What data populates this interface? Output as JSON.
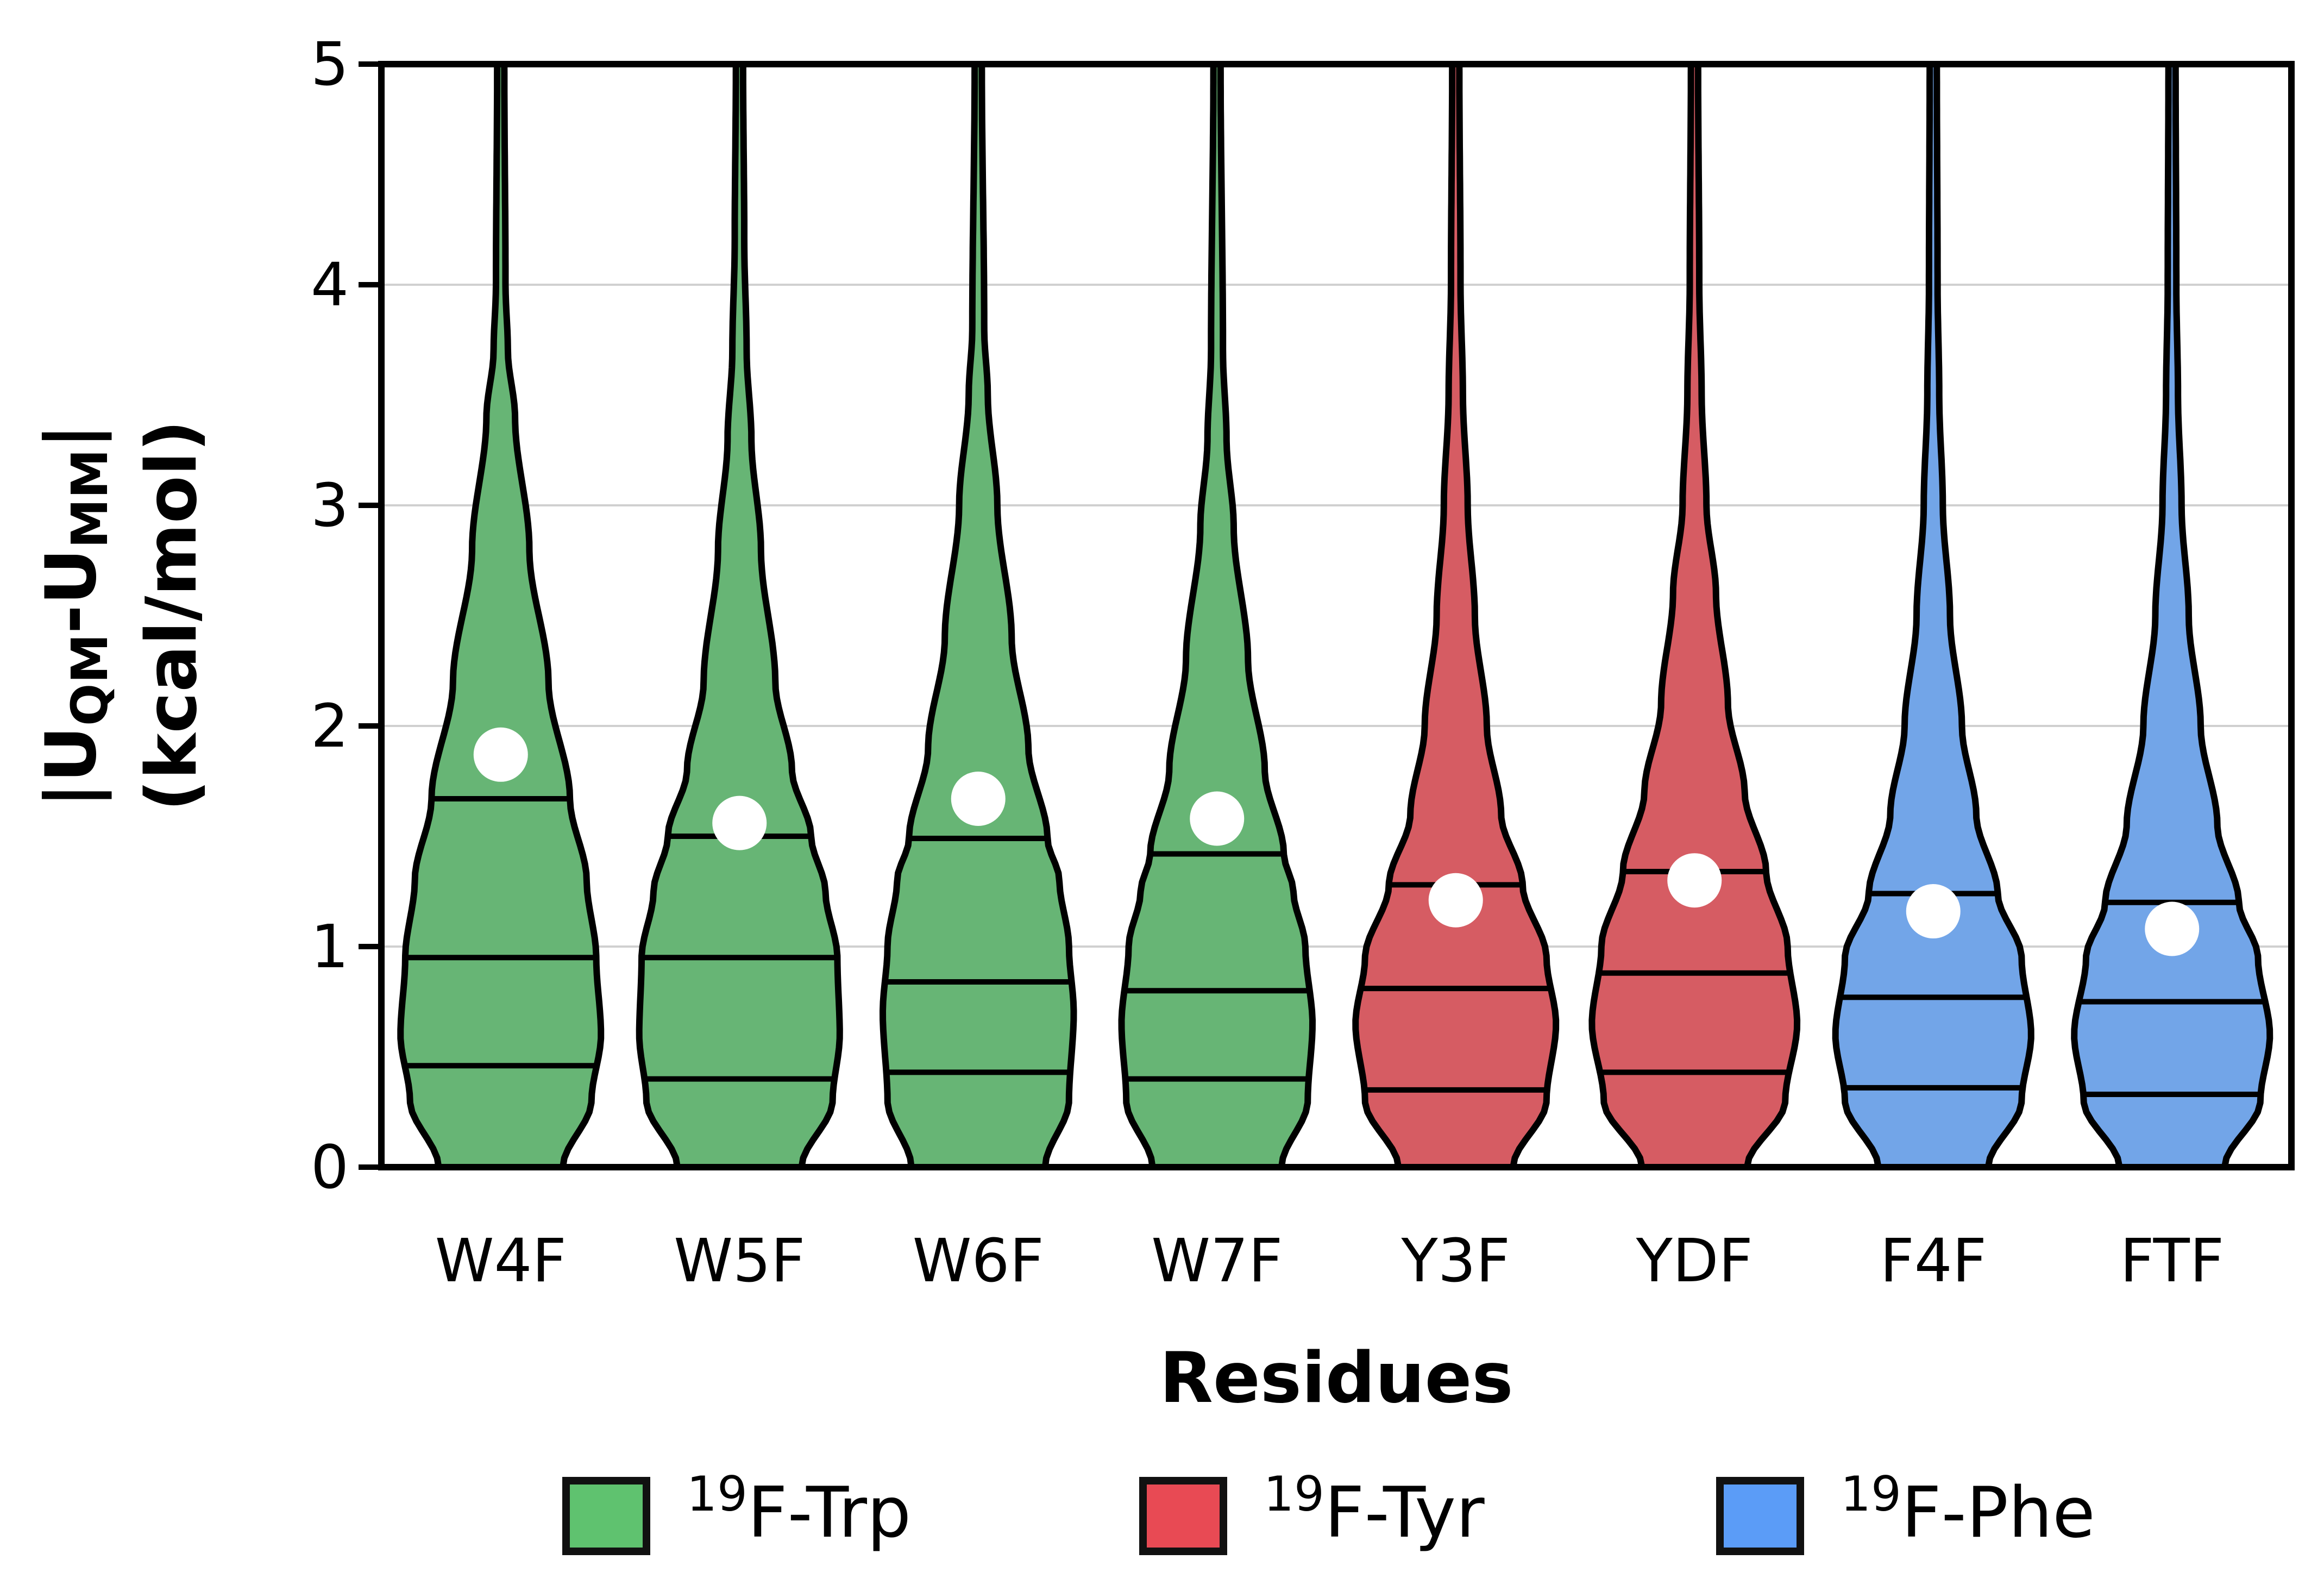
{
  "chart_data": {
    "type": "violin",
    "xlabel": "Residues",
    "ylabel_line1": "|U",
    "ylabel_sub1": "QM",
    "ylabel_mid": "-U",
    "ylabel_sub2": "MM",
    "ylabel_end": "|",
    "ylabel_line2": "(kcal/mol)",
    "ylim": [
      0,
      5
    ],
    "yticks": [
      "0",
      "1",
      "2",
      "3",
      "4",
      "5"
    ],
    "grid": "horizontal",
    "legend_position": "bottom",
    "categories": [
      "W4F",
      "W5F",
      "W6F",
      "W7F",
      "Y3F",
      "YDF",
      "F4F",
      "FTF"
    ],
    "groups": [
      {
        "name_sup": "19",
        "name": "F-Trp",
        "color": "#5fc26f"
      },
      {
        "name_sup": "19",
        "name": "F-Tyr",
        "color": "#e84a54"
      },
      {
        "name_sup": "19",
        "name": "F-Phe",
        "color": "#5b9cf7"
      }
    ],
    "fill_colors": [
      "#67b575",
      "#d65c63",
      "#72a5e8"
    ],
    "violins": [
      {
        "category": "W4F",
        "group": 0,
        "mean": 1.87,
        "q1": 0.46,
        "median": 0.95,
        "q3": 1.67,
        "width_profile": [
          [
            0,
            0.26
          ],
          [
            0.3,
            0.38
          ],
          [
            0.6,
            0.42
          ],
          [
            0.95,
            0.4
          ],
          [
            1.3,
            0.36
          ],
          [
            1.67,
            0.29
          ],
          [
            2.2,
            0.2
          ],
          [
            2.8,
            0.12
          ],
          [
            3.4,
            0.06
          ],
          [
            3.7,
            0.03
          ],
          [
            4.0,
            0.02
          ],
          [
            5.0,
            0.015
          ]
        ]
      },
      {
        "category": "W5F",
        "group": 0,
        "mean": 1.56,
        "q1": 0.4,
        "median": 0.95,
        "q3": 1.5,
        "width_profile": [
          [
            0,
            0.26
          ],
          [
            0.3,
            0.39
          ],
          [
            0.6,
            0.42
          ],
          [
            0.95,
            0.41
          ],
          [
            1.25,
            0.36
          ],
          [
            1.5,
            0.3
          ],
          [
            1.8,
            0.22
          ],
          [
            2.2,
            0.15
          ],
          [
            2.8,
            0.09
          ],
          [
            3.3,
            0.05
          ],
          [
            3.7,
            0.03
          ],
          [
            4.2,
            0.02
          ],
          [
            5.0,
            0.015
          ]
        ]
      },
      {
        "category": "W6F",
        "group": 0,
        "mean": 1.67,
        "q1": 0.43,
        "median": 0.84,
        "q3": 1.49,
        "width_profile": [
          [
            0,
            0.28
          ],
          [
            0.3,
            0.38
          ],
          [
            0.7,
            0.4
          ],
          [
            1.0,
            0.38
          ],
          [
            1.3,
            0.34
          ],
          [
            1.49,
            0.29
          ],
          [
            1.9,
            0.21
          ],
          [
            2.4,
            0.14
          ],
          [
            3.0,
            0.08
          ],
          [
            3.5,
            0.04
          ],
          [
            3.8,
            0.025
          ],
          [
            5.0,
            0.015
          ]
        ]
      },
      {
        "category": "W7F",
        "group": 0,
        "mean": 1.58,
        "q1": 0.4,
        "median": 0.8,
        "q3": 1.42,
        "width_profile": [
          [
            0,
            0.27
          ],
          [
            0.3,
            0.38
          ],
          [
            0.65,
            0.4
          ],
          [
            1.0,
            0.37
          ],
          [
            1.25,
            0.32
          ],
          [
            1.42,
            0.28
          ],
          [
            1.8,
            0.2
          ],
          [
            2.3,
            0.13
          ],
          [
            2.9,
            0.07
          ],
          [
            3.3,
            0.04
          ],
          [
            3.7,
            0.025
          ],
          [
            5.0,
            0.015
          ]
        ]
      },
      {
        "category": "Y3F",
        "group": 1,
        "mean": 1.21,
        "q1": 0.35,
        "median": 0.81,
        "q3": 1.28,
        "width_profile": [
          [
            0,
            0.24
          ],
          [
            0.3,
            0.38
          ],
          [
            0.65,
            0.42
          ],
          [
            0.95,
            0.38
          ],
          [
            1.28,
            0.28
          ],
          [
            1.6,
            0.19
          ],
          [
            2.0,
            0.13
          ],
          [
            2.5,
            0.08
          ],
          [
            3.0,
            0.05
          ],
          [
            3.5,
            0.03
          ],
          [
            4.0,
            0.02
          ],
          [
            5.0,
            0.015
          ]
        ]
      },
      {
        "category": "YDF",
        "group": 1,
        "mean": 1.3,
        "q1": 0.43,
        "median": 0.88,
        "q3": 1.34,
        "width_profile": [
          [
            0,
            0.22
          ],
          [
            0.3,
            0.38
          ],
          [
            0.65,
            0.43
          ],
          [
            1.0,
            0.39
          ],
          [
            1.34,
            0.3
          ],
          [
            1.7,
            0.21
          ],
          [
            2.1,
            0.14
          ],
          [
            2.6,
            0.09
          ],
          [
            3.0,
            0.05
          ],
          [
            3.5,
            0.03
          ],
          [
            4.0,
            0.02
          ],
          [
            5.0,
            0.015
          ]
        ]
      },
      {
        "category": "F4F",
        "group": 2,
        "mean": 1.16,
        "q1": 0.36,
        "median": 0.77,
        "q3": 1.24,
        "width_profile": [
          [
            0,
            0.23
          ],
          [
            0.3,
            0.37
          ],
          [
            0.6,
            0.41
          ],
          [
            0.95,
            0.37
          ],
          [
            1.24,
            0.27
          ],
          [
            1.6,
            0.18
          ],
          [
            2.0,
            0.12
          ],
          [
            2.5,
            0.07
          ],
          [
            3.0,
            0.04
          ],
          [
            3.5,
            0.025
          ],
          [
            4.0,
            0.018
          ],
          [
            5.0,
            0.015
          ]
        ]
      },
      {
        "category": "FTF",
        "group": 2,
        "mean": 1.08,
        "q1": 0.33,
        "median": 0.75,
        "q3": 1.2,
        "width_profile": [
          [
            0,
            0.22
          ],
          [
            0.3,
            0.37
          ],
          [
            0.6,
            0.41
          ],
          [
            0.95,
            0.36
          ],
          [
            1.2,
            0.28
          ],
          [
            1.55,
            0.19
          ],
          [
            2.0,
            0.12
          ],
          [
            2.5,
            0.07
          ],
          [
            3.0,
            0.04
          ],
          [
            3.5,
            0.025
          ],
          [
            4.0,
            0.018
          ],
          [
            5.0,
            0.015
          ]
        ]
      }
    ]
  }
}
